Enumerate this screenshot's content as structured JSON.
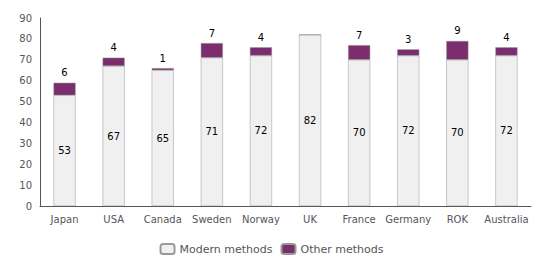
{
  "chart_data": {
    "type": "bar",
    "stacked": true,
    "categories": [
      "Japan",
      "USA",
      "Canada",
      "Sweden",
      "Norway",
      "UK",
      "France",
      "Germany",
      "ROK",
      "Australia"
    ],
    "series": [
      {
        "name": "Modern methods",
        "color": "#f0f0f0",
        "values": [
          53,
          67,
          65,
          71,
          72,
          82,
          70,
          72,
          70,
          72
        ]
      },
      {
        "name": "Other methods",
        "color": "#7B2D6E",
        "values": [
          6,
          4,
          1,
          7,
          4,
          0,
          7,
          3,
          9,
          4
        ]
      }
    ],
    "ylim": [
      0,
      90
    ],
    "yticks": [
      0,
      10,
      20,
      30,
      40,
      50,
      60,
      70,
      80,
      90
    ],
    "grid": false,
    "legend": "bottom",
    "data_labels": true
  }
}
